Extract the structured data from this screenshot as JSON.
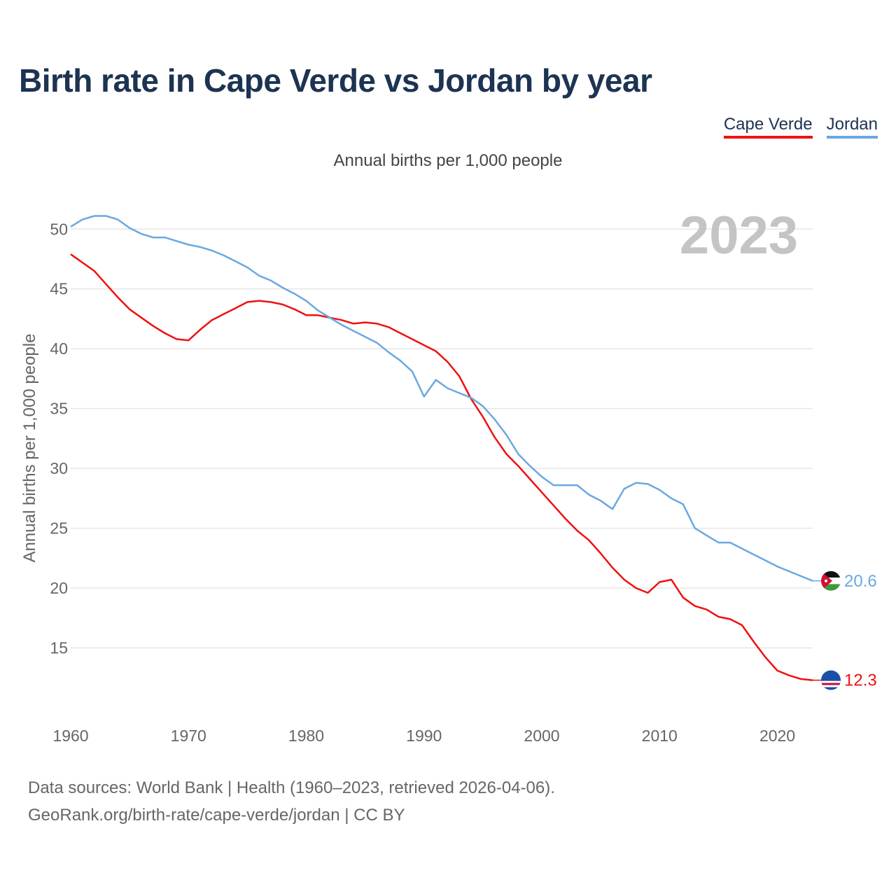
{
  "header": {
    "title": "Birth rate in Cape Verde vs Jordan by year"
  },
  "legend": {
    "cape_verde": "Cape Verde",
    "jordan": "Jordan"
  },
  "colors": {
    "cape_verde": "#ee1111",
    "jordan": "#6ba8e0",
    "title": "#1d3352",
    "grid": "#e6e6e6"
  },
  "footer": {
    "line1": "Data sources: World Bank | Health (1960–2023, retrieved 2026-04-06).",
    "line2": "GeoRank.org/birth-rate/cape-verde/jordan | CC BY"
  },
  "chart_data": {
    "type": "line",
    "title": "Birth rate in Cape Verde vs Jordan by year",
    "subtitle": "Annual births per 1,000 people",
    "ylabel": "Annual births per 1,000 people",
    "xlabel": "",
    "year_label": "2023",
    "xlim": [
      1960,
      2023
    ],
    "ylim": [
      10,
      53
    ],
    "xticks": [
      1960,
      1970,
      1980,
      1990,
      2000,
      2010,
      2020
    ],
    "yticks": [
      15,
      20,
      25,
      30,
      35,
      40,
      45,
      50
    ],
    "grid": true,
    "legend_position": "top-right",
    "x": [
      1960,
      1961,
      1962,
      1963,
      1964,
      1965,
      1966,
      1967,
      1968,
      1969,
      1970,
      1971,
      1972,
      1973,
      1974,
      1975,
      1976,
      1977,
      1978,
      1979,
      1980,
      1981,
      1982,
      1983,
      1984,
      1985,
      1986,
      1987,
      1988,
      1989,
      1990,
      1991,
      1992,
      1993,
      1994,
      1995,
      1996,
      1997,
      1998,
      1999,
      2000,
      2001,
      2002,
      2003,
      2004,
      2005,
      2006,
      2007,
      2008,
      2009,
      2010,
      2011,
      2012,
      2013,
      2014,
      2015,
      2016,
      2017,
      2018,
      2019,
      2020,
      2021,
      2022,
      2023
    ],
    "series": [
      {
        "name": "Cape Verde",
        "end_label": "12.3",
        "values": [
          47.9,
          47.2,
          46.5,
          45.4,
          44.3,
          43.3,
          42.6,
          41.9,
          41.3,
          40.8,
          40.7,
          41.6,
          42.4,
          42.9,
          43.4,
          43.9,
          44.0,
          43.9,
          43.7,
          43.3,
          42.8,
          42.8,
          42.6,
          42.4,
          42.1,
          42.2,
          42.1,
          41.8,
          41.3,
          40.8,
          40.3,
          39.8,
          38.9,
          37.7,
          35.8,
          34.3,
          32.6,
          31.2,
          30.2,
          29.1,
          28.0,
          26.9,
          25.8,
          24.8,
          24.0,
          22.9,
          21.7,
          20.7,
          20.0,
          19.6,
          20.5,
          20.7,
          19.2,
          18.5,
          18.2,
          17.6,
          17.4,
          16.9,
          15.5,
          14.2,
          13.1,
          12.7,
          12.4,
          12.3
        ]
      },
      {
        "name": "Jordan",
        "end_label": "20.6",
        "values": [
          50.2,
          50.8,
          51.1,
          51.1,
          50.8,
          50.1,
          49.6,
          49.3,
          49.3,
          49.0,
          48.7,
          48.5,
          48.2,
          47.8,
          47.3,
          46.8,
          46.1,
          45.7,
          45.1,
          44.6,
          44.0,
          43.2,
          42.6,
          42.0,
          41.5,
          41.0,
          40.5,
          39.7,
          39.0,
          38.1,
          36.0,
          37.4,
          36.7,
          36.3,
          35.9,
          35.2,
          34.1,
          32.8,
          31.2,
          30.2,
          29.3,
          28.6,
          28.6,
          28.6,
          27.8,
          27.3,
          26.6,
          28.3,
          28.8,
          28.7,
          28.2,
          27.5,
          27.0,
          25.0,
          24.4,
          23.8,
          23.8,
          23.3,
          22.8,
          22.3,
          21.8,
          21.4,
          21.0,
          20.6
        ]
      }
    ]
  }
}
